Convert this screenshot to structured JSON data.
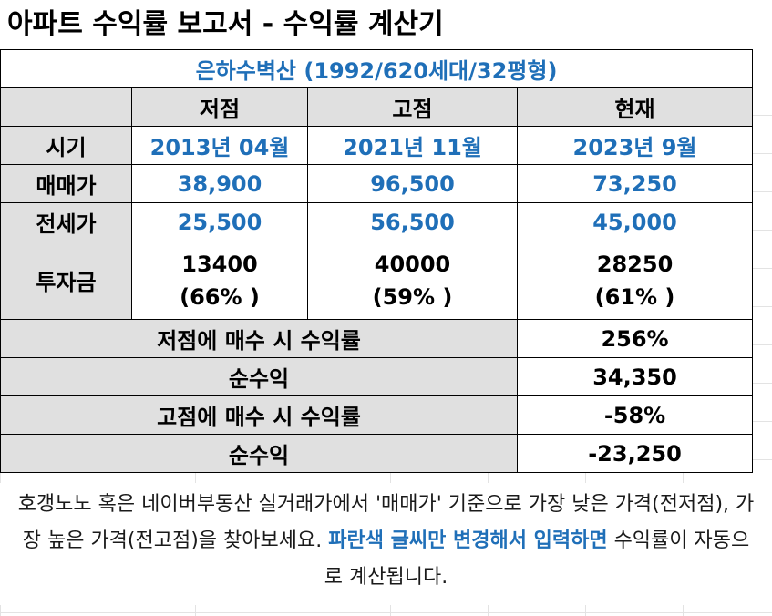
{
  "title": "아파트 수익률 보고서 - 수익률 계산기",
  "complex": "은하수벽산 (1992/620세대/32평형)",
  "columns": [
    "저점",
    "고점",
    "현재"
  ],
  "rows": {
    "period": {
      "label": "시기",
      "values": [
        "2013년 04월",
        "2021년 11월",
        "2023년 9월"
      ]
    },
    "sale": {
      "label": "매매가",
      "values": [
        "38,900",
        "96,500",
        "73,250"
      ]
    },
    "jeonse": {
      "label": "전세가",
      "values": [
        "25,500",
        "56,500",
        "45,000"
      ]
    },
    "invest": {
      "label": "투자금",
      "values": [
        "13400",
        "40000",
        "28250"
      ],
      "ratios": [
        "(66% )",
        "(59% )",
        "(61% )"
      ]
    }
  },
  "summary": [
    {
      "label": "저점에 매수 시 수익률",
      "value": "256%"
    },
    {
      "label": "순수익",
      "value": "34,350"
    },
    {
      "label": "고점에 매수 시 수익률",
      "value": "-58%"
    },
    {
      "label": "순수익",
      "value": "-23,250"
    }
  ],
  "note": {
    "part1": "호갱노노 혹은 네이버부동산 실거래가에서 '매매가' 기준으로 가장 낮은 가격(전저점), 가장 높은 가격(전고점)을 찾아보세요. ",
    "highlight": "파란색 글씨만 변경해서 입력하면",
    "part2": " 수익률이 자동으로 계산됩니다."
  },
  "colors": {
    "blue": "#1f6fb8",
    "gray": "#e0e0e0"
  }
}
